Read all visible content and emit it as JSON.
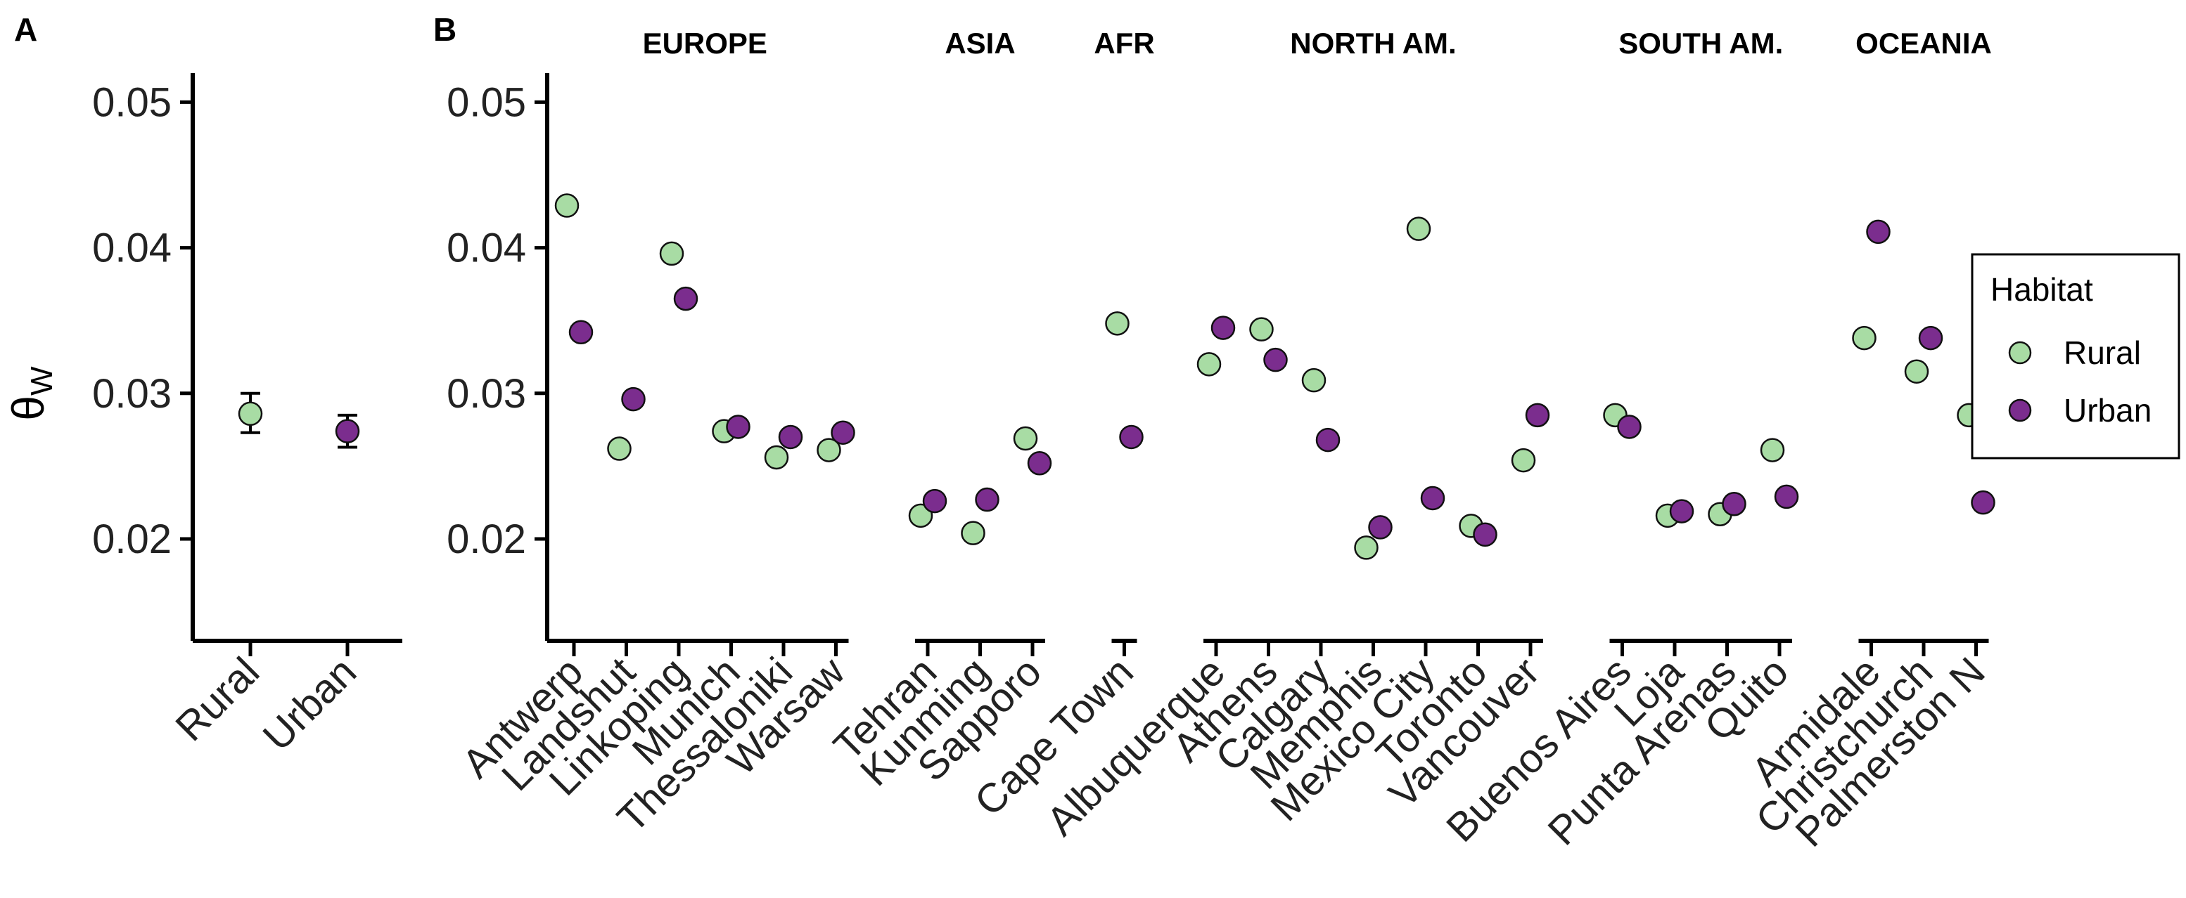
{
  "panels": {
    "a": "A",
    "b": "B"
  },
  "y_axis": {
    "label_main": "θ",
    "label_sub": "W"
  },
  "legend": {
    "title": "Habitat",
    "items": [
      {
        "label": "Rural",
        "color": "#a8dca4"
      },
      {
        "label": "Urban",
        "color": "#7b2d8e"
      }
    ]
  },
  "colors": {
    "rural": "#a8dca4",
    "urban": "#7b2d8e",
    "outline": "#111111"
  },
  "chart_data": [
    {
      "panel": "A",
      "type": "scatter",
      "ylim": [
        0.013,
        0.052
      ],
      "yticks": [
        "0.02",
        "0.03",
        "0.04",
        "0.05"
      ],
      "categories": [
        "Rural",
        "Urban"
      ],
      "series": [
        {
          "name": "Rural",
          "x": "Rural",
          "y": 0.0286,
          "ymin": 0.0273,
          "ymax": 0.03
        },
        {
          "name": "Urban",
          "x": "Urban",
          "y": 0.0274,
          "ymin": 0.0263,
          "ymax": 0.0285
        }
      ],
      "grid": false
    },
    {
      "panel": "B",
      "type": "scatter",
      "ylim": [
        0.013,
        0.052
      ],
      "yticks": [
        "0.02",
        "0.03",
        "0.04",
        "0.05"
      ],
      "grid": false,
      "legend_position": "right",
      "groups": [
        {
          "name": "EUROPE",
          "cities": [
            "Antwerp",
            "Landshut",
            "Linkoping",
            "Munich",
            "Thessaloniki",
            "Warsaw"
          ]
        },
        {
          "name": "ASIA",
          "cities": [
            "Tehran",
            "Kunming",
            "Sapporo"
          ]
        },
        {
          "name": "AFR",
          "cities": [
            "Cape Town"
          ]
        },
        {
          "name": "NORTH AM.",
          "cities": [
            "Albuquerque",
            "Athens",
            "Calgary",
            "Memphis",
            "Mexico City",
            "Toronto",
            "Vancouver"
          ]
        },
        {
          "name": "SOUTH AM.",
          "cities": [
            "Buenos Aires",
            "Loja",
            "Punta Arenas",
            "Quito"
          ]
        },
        {
          "name": "OCEANIA",
          "cities": [
            "Armidale",
            "Christchurch",
            "Palmerston N"
          ]
        }
      ],
      "series": [
        {
          "name": "Rural",
          "values": {
            "Antwerp": 0.0429,
            "Landshut": 0.0262,
            "Linkoping": 0.0396,
            "Munich": 0.0274,
            "Thessaloniki": 0.0256,
            "Warsaw": 0.0261,
            "Tehran": 0.0216,
            "Kunming": 0.0204,
            "Sapporo": 0.0269,
            "Cape Town": 0.0348,
            "Albuquerque": 0.032,
            "Athens": 0.0344,
            "Calgary": 0.0309,
            "Memphis": 0.0194,
            "Mexico City": 0.0413,
            "Toronto": 0.0209,
            "Vancouver": 0.0254,
            "Buenos Aires": 0.0285,
            "Loja": 0.0216,
            "Punta Arenas": 0.0217,
            "Quito": 0.0261,
            "Armidale": 0.0338,
            "Christchurch": 0.0315,
            "Palmerston N": 0.0285
          }
        },
        {
          "name": "Urban",
          "values": {
            "Antwerp": 0.0342,
            "Landshut": 0.0296,
            "Linkoping": 0.0365,
            "Munich": 0.0277,
            "Thessaloniki": 0.027,
            "Warsaw": 0.0273,
            "Tehran": 0.0226,
            "Kunming": 0.0227,
            "Sapporo": 0.0252,
            "Cape Town": 0.027,
            "Albuquerque": 0.0345,
            "Athens": 0.0323,
            "Calgary": 0.0268,
            "Memphis": 0.0208,
            "Mexico City": 0.0228,
            "Toronto": 0.0203,
            "Vancouver": 0.0285,
            "Buenos Aires": 0.0277,
            "Loja": 0.0219,
            "Punta Arenas": 0.0224,
            "Quito": 0.0229,
            "Armidale": 0.0411,
            "Christchurch": 0.0338,
            "Palmerston N": 0.0225
          }
        }
      ]
    }
  ]
}
